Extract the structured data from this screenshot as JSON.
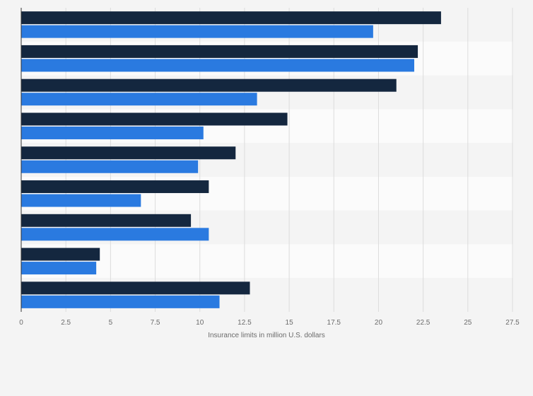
{
  "chart_data": {
    "type": "bar",
    "orientation": "horizontal",
    "title": "",
    "xlabel": "Insurance limits in million U.S. dollars",
    "ylabel": "",
    "xlim": [
      0,
      27.5
    ],
    "xticks": [
      "0",
      "2.5",
      "5",
      "7.5",
      "10",
      "12.5",
      "15",
      "17.5",
      "20",
      "22.5",
      "25",
      "27.5"
    ],
    "grid": true,
    "legend": "none",
    "categories": [
      "",
      "",
      "",
      "",
      "",
      "",
      "",
      "",
      ""
    ],
    "series": [
      {
        "color": "#14273f",
        "values": [
          23.5,
          22.2,
          21.0,
          14.9,
          12.0,
          10.5,
          9.5,
          4.4,
          12.8
        ]
      },
      {
        "color": "#2a7ae0",
        "values": [
          19.7,
          22.0,
          13.2,
          10.2,
          9.9,
          6.7,
          10.5,
          4.2,
          11.1
        ]
      }
    ]
  }
}
